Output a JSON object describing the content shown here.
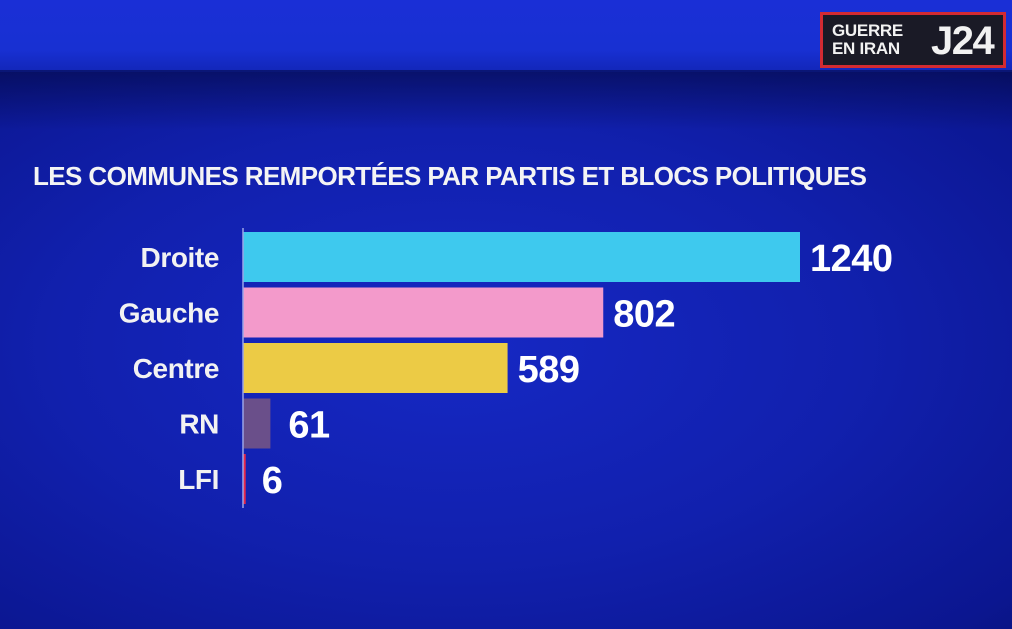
{
  "badge": {
    "line1": "GUERRE",
    "line2": "EN IRAN",
    "day": "J24",
    "border_color": "#d32b32"
  },
  "chart_data": {
    "type": "bar",
    "orientation": "horizontal",
    "title": "LES COMMUNES REMPORTÉES PAR PARTIS ET BLOCS POLITIQUES",
    "categories": [
      "Droite",
      "Gauche",
      "Centre",
      "RN",
      "LFI"
    ],
    "values": [
      1240,
      802,
      589,
      61,
      6
    ],
    "colors": [
      "#3ec9ee",
      "#f39acb",
      "#eccb45",
      "#6a4f8a",
      "#e8284a"
    ],
    "xlim": [
      0,
      1240
    ],
    "grid": false,
    "legend": "none"
  }
}
